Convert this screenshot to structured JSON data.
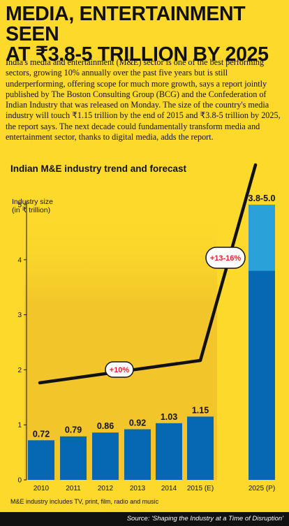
{
  "header": {
    "title_line1": "MEDIA, ENTERTAINMENT SEEN",
    "title_line2": "AT ₹3.8-5 TRILLION BY 2025",
    "intro": "India's media and entertainment (M&E) sector is one of the best performing sectors, growing 10% annually over the past five years but is still underperforming, offering scope for much more growth, says a report jointly published by The Boston Consulting Group (BCG) and the Confederation of Indian Industry that was released on Monday. The size of the country's media industry will touch ₹1.15 trillion by the end of 2015 and ₹3.8-5 trillion by 2025, the report says. The next decade could fundamentally transform media and entertainment sector, thanks to digital media, adds the report."
  },
  "colors": {
    "background": "#FCD92B",
    "bar": "#0668B2",
    "bar_range": "#2BA1DA",
    "highlight_band": "#F2C62A",
    "trend_line": "#111111",
    "badge_text": "#E2242B"
  },
  "chart_data": {
    "type": "bar",
    "title": "Indian M&E industry trend and forecast",
    "ylabel_line1": "Industry size",
    "ylabel_line2": "(in ₹ trillion)",
    "categories": [
      "2010",
      "2011",
      "2012",
      "2013",
      "2014",
      "2015 (E)",
      "2025 (P)"
    ],
    "values": [
      0.72,
      0.79,
      0.86,
      0.92,
      1.03,
      1.15,
      3.8
    ],
    "range_top": {
      "category": "2025 (P)",
      "low": 3.8,
      "high": 5.0
    },
    "data_labels": [
      "0.72",
      "0.79",
      "0.86",
      "0.92",
      "1.03",
      "1.15",
      "3.8-5.0"
    ],
    "ylim": [
      0,
      5
    ],
    "yticks": [
      0,
      1,
      2,
      3,
      4,
      5
    ],
    "trend_annotations": [
      "+10%",
      "+13-16%"
    ],
    "grid": false
  },
  "footnote": "M&E industry includes TV, print, film, radio and music",
  "source": "Source: 'Shaping the Industry at a Time of Disruption'"
}
